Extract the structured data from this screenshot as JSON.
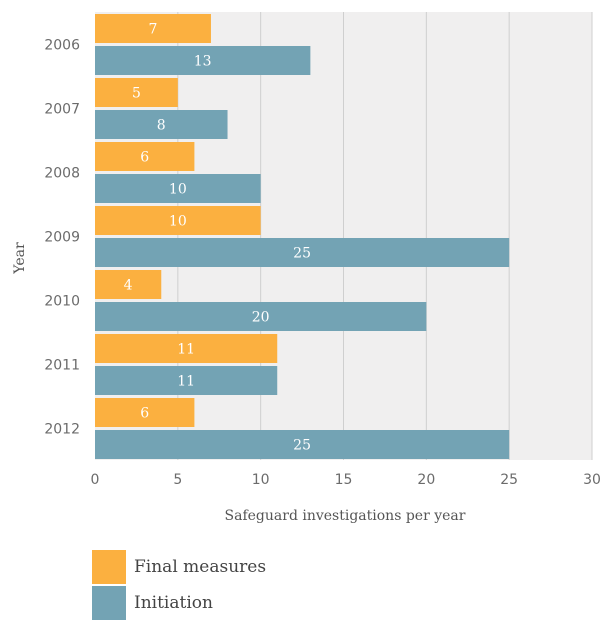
{
  "chart_data": {
    "type": "bar",
    "orientation": "horizontal",
    "categories": [
      "2006",
      "2007",
      "2008",
      "2009",
      "2010",
      "2011",
      "2012"
    ],
    "series": [
      {
        "name": "Final measures",
        "values": [
          7,
          5,
          6,
          10,
          4,
          11,
          6
        ],
        "color": "#fbb040"
      },
      {
        "name": "Initiation",
        "values": [
          13,
          8,
          10,
          25,
          20,
          11,
          25
        ],
        "color": "#73a3b4"
      }
    ],
    "xlabel": "Safeguard investigations per year",
    "ylabel": "Year",
    "xlim": [
      0,
      30
    ],
    "xticks": [
      0,
      5,
      10,
      15,
      20,
      25,
      30
    ],
    "grid": "vertical",
    "legend_position": "bottom-left",
    "background_color": "#f0efef"
  }
}
